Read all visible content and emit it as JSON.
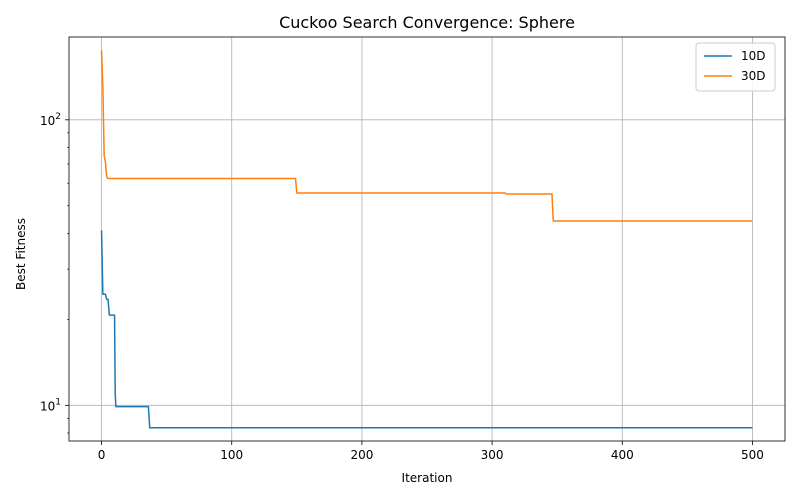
{
  "chart_data": {
    "type": "line",
    "title": "Cuckoo Search Convergence: Sphere",
    "xlabel": "Iteration",
    "ylabel": "Best Fitness",
    "xlim": [
      -25,
      525
    ],
    "ylim": [
      7.5,
      195
    ],
    "yscale": "log",
    "grid": true,
    "legend_position": "top-right",
    "x_ticks": [
      0,
      100,
      200,
      300,
      400,
      500
    ],
    "y_major_ticks": [
      10,
      100
    ],
    "series": [
      {
        "name": "10D",
        "color": "#1f77b4",
        "points": [
          [
            0,
            41
          ],
          [
            1,
            24.5
          ],
          [
            3,
            24.5
          ],
          [
            4,
            23.5
          ],
          [
            5,
            23.5
          ],
          [
            6,
            20.7
          ],
          [
            10,
            20.7
          ],
          [
            10.5,
            11
          ],
          [
            11,
            9.9
          ],
          [
            36,
            9.9
          ],
          [
            37,
            8.35
          ],
          [
            500,
            8.35
          ]
        ]
      },
      {
        "name": "30D",
        "color": "#ff7f0e",
        "points": [
          [
            0,
            175
          ],
          [
            1,
            130
          ],
          [
            2,
            75
          ],
          [
            3,
            71
          ],
          [
            4,
            63
          ],
          [
            5,
            62.3
          ],
          [
            149,
            62.3
          ],
          [
            150,
            55.4
          ],
          [
            310,
            55.4
          ],
          [
            311,
            55
          ],
          [
            346,
            55
          ],
          [
            347,
            44.2
          ],
          [
            500,
            44.2
          ]
        ]
      }
    ]
  }
}
